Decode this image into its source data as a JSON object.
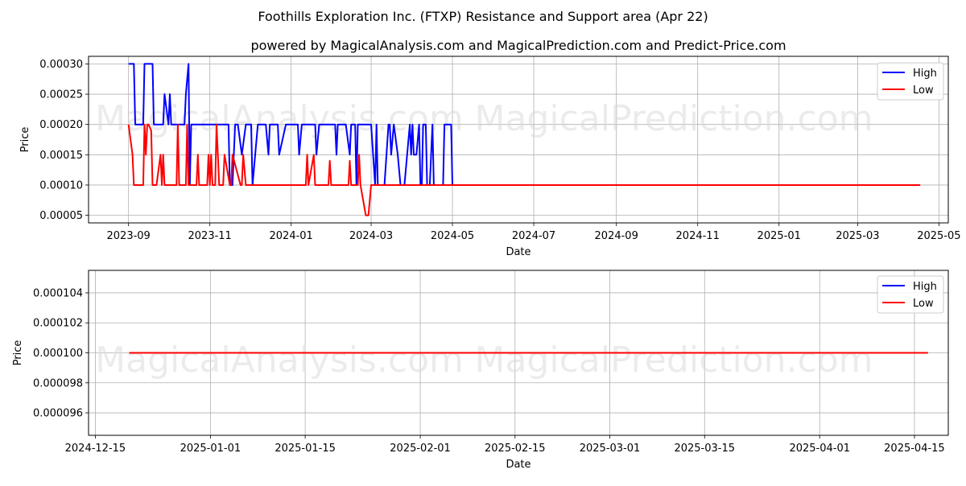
{
  "title": "Foothills Exploration Inc. (FTXP) Resistance and Support area (Apr 22)",
  "subtitle": "powered by MagicalAnalysis.com and MagicalPrediction.com and Predict-Price.com",
  "watermarks": [
    "MagicalAnalysis.com",
    "MagicalPrediction.com"
  ],
  "colors": {
    "high": "#0000ff",
    "low": "#ff0000",
    "grid": "#b0b0b0"
  },
  "chart_data": [
    {
      "type": "line",
      "xlabel": "Date",
      "ylabel": "Price",
      "xlim": [
        "2023-08-02",
        "2025-05-08"
      ],
      "ylim": [
        3.75e-05,
        0.0003125
      ],
      "grid": true,
      "legend_position": "top-right",
      "x_ticks": [
        "2023-09-01",
        "2023-11-01",
        "2024-01-01",
        "2024-03-01",
        "2024-05-01",
        "2024-07-01",
        "2024-09-01",
        "2024-11-01",
        "2025-01-01",
        "2025-03-01",
        "2025-05-01"
      ],
      "x_tick_labels": [
        "2023-09",
        "2023-11",
        "2024-01",
        "2024-03",
        "2024-05",
        "2024-07",
        "2024-09",
        "2024-11",
        "2025-01",
        "2025-03",
        "2025-05"
      ],
      "y_ticks": [
        5e-05,
        0.0001,
        0.00015,
        0.0002,
        0.00025,
        0.0003
      ],
      "y_tick_labels": [
        "0.00005",
        "0.00010",
        "0.00015",
        "0.00020",
        "0.00025",
        "0.00030"
      ],
      "series": [
        {
          "name": "High",
          "color": "#0000ff",
          "x": [
            "2023-09-01",
            "2023-09-05",
            "2023-09-06",
            "2023-09-09",
            "2023-09-12",
            "2023-09-13",
            "2023-09-15",
            "2023-09-19",
            "2023-09-20",
            "2023-09-23",
            "2023-09-27",
            "2023-09-28",
            "2023-10-01",
            "2023-10-02",
            "2023-10-03",
            "2023-10-04",
            "2023-10-06",
            "2023-10-12",
            "2023-10-13",
            "2023-10-14",
            "2023-10-16",
            "2023-10-17",
            "2023-10-18",
            "2023-10-19",
            "2023-11-15",
            "2023-11-16",
            "2023-11-18",
            "2023-11-20",
            "2023-11-21",
            "2023-11-22",
            "2023-11-25",
            "2023-11-28",
            "2023-12-01",
            "2023-12-02",
            "2023-12-03",
            "2023-12-07",
            "2023-12-13",
            "2023-12-15",
            "2023-12-16",
            "2023-12-18",
            "2023-12-20",
            "2023-12-22",
            "2023-12-23",
            "2023-12-28",
            "2023-12-29",
            "2024-01-06",
            "2024-01-07",
            "2024-01-09",
            "2024-01-10",
            "2024-01-19",
            "2024-01-20",
            "2024-01-22",
            "2024-01-23",
            "2024-01-26",
            "2024-01-27",
            "2024-01-30",
            "2024-02-03",
            "2024-02-04",
            "2024-02-05",
            "2024-02-08",
            "2024-02-10",
            "2024-02-11",
            "2024-02-14",
            "2024-02-15",
            "2024-02-17",
            "2024-02-18",
            "2024-02-19",
            "2024-02-20",
            "2024-02-23",
            "2024-02-26",
            "2024-03-01",
            "2024-03-04",
            "2024-03-05",
            "2024-03-06",
            "2024-03-11",
            "2024-03-14",
            "2024-03-15",
            "2024-03-16",
            "2024-03-18",
            "2024-03-21",
            "2024-03-23",
            "2024-03-26",
            "2024-03-30",
            "2024-03-31",
            "2024-04-01",
            "2024-04-02",
            "2024-04-04",
            "2024-04-06",
            "2024-04-07",
            "2024-04-08",
            "2024-04-09",
            "2024-04-11",
            "2024-04-12",
            "2024-04-14",
            "2024-04-16",
            "2024-04-17",
            "2024-04-18",
            "2024-04-24",
            "2024-04-25",
            "2024-04-27",
            "2024-04-30",
            "2024-05-01",
            "2024-05-02"
          ],
          "values": [
            0.0003,
            0.0003,
            0.0002,
            0.0002,
            0.0002,
            0.0003,
            0.0003,
            0.0003,
            0.0002,
            0.0002,
            0.0002,
            0.00025,
            0.0002,
            0.00025,
            0.0002,
            0.0002,
            0.0002,
            0.0002,
            0.0002,
            0.00025,
            0.0003,
            0.0001,
            0.0002,
            0.0002,
            0.0002,
            0.0001,
            0.0001,
            0.0002,
            0.0002,
            0.0002,
            0.00015,
            0.0002,
            0.0002,
            0.0002,
            0.0001,
            0.0002,
            0.0002,
            0.00015,
            0.0002,
            0.0002,
            0.0002,
            0.0002,
            0.00015,
            0.0002,
            0.0002,
            0.0002,
            0.00015,
            0.0002,
            0.0002,
            0.0002,
            0.00015,
            0.0002,
            0.0002,
            0.0002,
            0.0002,
            0.0002,
            0.0002,
            0.00015,
            0.0002,
            0.0002,
            0.0002,
            0.0002,
            0.00015,
            0.0002,
            0.0002,
            0.0002,
            0.0001,
            0.0002,
            0.0002,
            0.0002,
            0.0002,
            0.0001,
            0.0002,
            0.0001,
            0.0001,
            0.0002,
            0.0002,
            0.00015,
            0.0002,
            0.00015,
            0.0001,
            0.0001,
            0.0002,
            0.00015,
            0.0002,
            0.00015,
            0.00015,
            0.0002,
            0.0001,
            0.0001,
            0.0002,
            0.0002,
            0.0001,
            0.0001,
            0.0002,
            0.0001,
            0.0001,
            0.0001,
            0.0002,
            0.0002,
            0.0002,
            0.0001,
            0.0001
          ]
        },
        {
          "name": "Low",
          "color": "#ff0000",
          "x": [
            "2023-09-01",
            "2023-09-04",
            "2023-09-05",
            "2023-09-12",
            "2023-09-13",
            "2023-09-14",
            "2023-09-15",
            "2023-09-16",
            "2023-09-18",
            "2023-09-19",
            "2023-09-20",
            "2023-09-22",
            "2023-09-25",
            "2023-09-26",
            "2023-09-27",
            "2023-09-28",
            "2023-10-07",
            "2023-10-08",
            "2023-10-09",
            "2023-10-14",
            "2023-10-15",
            "2023-10-16",
            "2023-10-17",
            "2023-10-22",
            "2023-10-23",
            "2023-10-24",
            "2023-10-30",
            "2023-10-31",
            "2023-11-01",
            "2023-11-02",
            "2023-11-03",
            "2023-11-05",
            "2023-11-06",
            "2023-11-08",
            "2023-11-10",
            "2023-11-11",
            "2023-11-12",
            "2023-11-16",
            "2023-11-17",
            "2023-11-18",
            "2023-11-24",
            "2023-11-25",
            "2023-11-26",
            "2023-11-28",
            "2023-11-29",
            "2023-11-30",
            "2024-01-12",
            "2024-01-13",
            "2024-01-14",
            "2024-01-18",
            "2024-01-19",
            "2024-01-20",
            "2024-01-29",
            "2024-01-30",
            "2024-01-31",
            "2024-02-02",
            "2024-02-03",
            "2024-02-13",
            "2024-02-14",
            "2024-02-15",
            "2024-02-20",
            "2024-02-21",
            "2024-02-22",
            "2024-02-26",
            "2024-02-27",
            "2024-02-28",
            "2024-03-01",
            "2025-04-17"
          ],
          "values": [
            0.0002,
            0.00015,
            0.0001,
            0.0001,
            0.0002,
            0.00015,
            0.0002,
            0.0002,
            0.00019,
            0.0001,
            0.0001,
            0.0001,
            0.00015,
            0.0001,
            0.00015,
            0.0001,
            0.0001,
            0.0002,
            0.0001,
            0.0001,
            0.0002,
            0.0001,
            0.0001,
            0.0001,
            0.00015,
            0.0001,
            0.0001,
            0.00015,
            0.0001,
            0.00015,
            0.0001,
            0.0001,
            0.0002,
            0.0001,
            0.0001,
            0.0001,
            0.00015,
            0.0001,
            0.0001,
            0.00015,
            0.0001,
            0.0001,
            0.00015,
            0.0001,
            0.0001,
            0.0001,
            0.0001,
            0.00015,
            0.0001,
            0.00015,
            0.0001,
            0.0001,
            0.0001,
            0.00014,
            0.0001,
            0.0001,
            0.0001,
            0.0001,
            0.00014,
            0.0001,
            0.0001,
            0.00015,
            0.0001,
            5e-05,
            5e-05,
            5e-05,
            0.0001,
            0.0001
          ]
        }
      ]
    },
    {
      "type": "line",
      "xlabel": "Date",
      "ylabel": "Price",
      "xlim": [
        "2024-12-14",
        "2025-04-20"
      ],
      "ylim": [
        9.45e-05,
        0.0001055
      ],
      "grid": true,
      "legend_position": "top-right",
      "x_ticks": [
        "2024-12-15",
        "2025-01-01",
        "2025-01-15",
        "2025-02-01",
        "2025-02-15",
        "2025-03-01",
        "2025-03-15",
        "2025-04-01",
        "2025-04-15"
      ],
      "x_tick_labels": [
        "2024-12-15",
        "2025-01-01",
        "2025-01-15",
        "2025-02-01",
        "2025-02-15",
        "2025-03-01",
        "2025-03-15",
        "2025-04-01",
        "2025-04-15"
      ],
      "y_ticks": [
        9.6e-05,
        9.8e-05,
        0.0001,
        0.000102,
        0.000104
      ],
      "y_tick_labels": [
        "0.000096",
        "0.000098",
        "0.000100",
        "0.000102",
        "0.000104"
      ],
      "series": [
        {
          "name": "High",
          "color": "#0000ff",
          "x": [],
          "values": []
        },
        {
          "name": "Low",
          "color": "#ff0000",
          "x": [
            "2024-12-20",
            "2025-04-17"
          ],
          "values": [
            0.0001,
            0.0001
          ]
        }
      ]
    }
  ]
}
